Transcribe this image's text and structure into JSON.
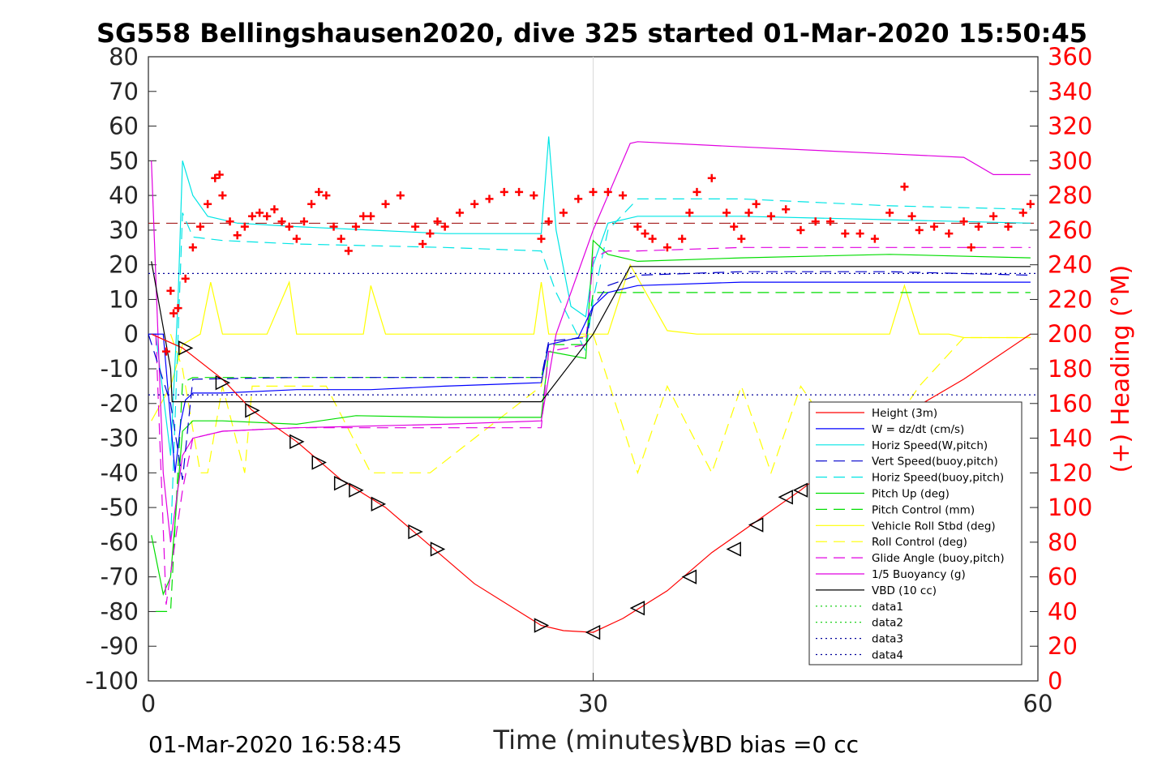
{
  "chart_data": {
    "type": "line",
    "title": "SG558 Bellingshausen2020, dive 325 started 01-Mar-2020 15:50:45",
    "xlabel": "Time (minutes)",
    "ylabel_right": "(+) Heading (°M)",
    "xlim": [
      0,
      60
    ],
    "ylim_left": [
      -100,
      80
    ],
    "ylim_right": [
      0,
      360
    ],
    "x_ticks": [
      "0",
      "30",
      "60"
    ],
    "y_ticks_left": [
      "80",
      "70",
      "60",
      "50",
      "40",
      "30",
      "20",
      "10",
      "0",
      "-10",
      "-20",
      "-30",
      "-40",
      "-50",
      "-60",
      "-70",
      "-80",
      "-90",
      "-100"
    ],
    "y_ticks_right": [
      "360",
      "340",
      "320",
      "300",
      "280",
      "260",
      "240",
      "220",
      "200",
      "180",
      "160",
      "140",
      "120",
      "100",
      "80",
      "60",
      "40",
      "20",
      "0"
    ],
    "grid": "x only at 30",
    "legend_placement": "lower-right",
    "footer_left": "01-Mar-2020 16:58:45",
    "footer_right": "VBD bias =0 cc",
    "series": [
      {
        "name": "Height (3m)",
        "color": "#ff0000",
        "style": "solid",
        "x": [
          0.2,
          2.3,
          5.0,
          7.0,
          10.0,
          13.0,
          16.0,
          19.0,
          22.0,
          26.5,
          28.0,
          30.0,
          32.0,
          35.0,
          38.0,
          41.0,
          44.0,
          47.0,
          51.0,
          55.0,
          59.5
        ],
        "y": [
          0,
          -4,
          -13,
          -22,
          -31,
          -42,
          -50,
          -61,
          -72,
          -84,
          -85.5,
          -86,
          -82,
          -74,
          -63,
          -54,
          -45,
          -35,
          -23,
          -13,
          0
        ]
      },
      {
        "name": "W = dz/dt (cm/s)",
        "color": "#0000ff",
        "style": "solid",
        "x": [
          0,
          1,
          1.8,
          2.2,
          2.5,
          3,
          5,
          10,
          15,
          20,
          26.5,
          27,
          29,
          30,
          31,
          33,
          40,
          50,
          59.5
        ],
        "y": [
          0,
          0,
          -40,
          -25,
          -19,
          -17,
          -17,
          -16,
          -16,
          -15,
          -14,
          -3,
          -1,
          8,
          12,
          14,
          15,
          15,
          15
        ]
      },
      {
        "name": "Horiz Speed(W,pitch)",
        "color": "#00e5e5",
        "style": "solid",
        "x": [
          0.5,
          1.5,
          2,
          2.3,
          3,
          4,
          6,
          10,
          15,
          20,
          26.5,
          27.0,
          27.5,
          28.5,
          29.5,
          30,
          31,
          33,
          40,
          50,
          59.5
        ],
        "y": [
          0,
          -35,
          10,
          50,
          40,
          34,
          32,
          31,
          30,
          29,
          29,
          57,
          30,
          8,
          5,
          20,
          32,
          34,
          34,
          33,
          32
        ]
      },
      {
        "name": "Vert Speed(buoy,pitch)",
        "color": "#0000cc",
        "style": "dash",
        "x": [
          0,
          1.5,
          2.3,
          3,
          10,
          20,
          26.5,
          27,
          29.5,
          30,
          31,
          33,
          40,
          50,
          59.5
        ],
        "y": [
          0,
          -20,
          -42,
          -13,
          -12.5,
          -12.5,
          -12.5,
          -2,
          -1,
          8,
          14,
          17,
          18,
          18,
          17
        ]
      },
      {
        "name": "Horiz Speed(buoy,pitch)",
        "color": "#00e5e5",
        "style": "dash",
        "x": [
          1.5,
          2.3,
          3,
          5,
          10,
          20,
          26.5,
          27.5,
          29.5,
          30,
          31,
          33,
          40,
          50,
          59.5
        ],
        "y": [
          -60,
          35,
          28,
          27,
          26,
          25,
          24,
          12,
          -5,
          10,
          30,
          39,
          39,
          37,
          36
        ]
      },
      {
        "name": "Pitch Up (deg)",
        "color": "#00dd00",
        "style": "solid",
        "x": [
          0.2,
          1,
          1.5,
          2.3,
          3,
          5,
          10,
          14,
          20,
          26.5,
          27,
          29.5,
          30,
          31,
          33,
          40,
          50,
          59.5
        ],
        "y": [
          -58,
          -75,
          -70,
          -28,
          -25,
          -25,
          -26,
          -23.5,
          -24,
          -24,
          -5,
          -7,
          27,
          23,
          21,
          22,
          23,
          22
        ]
      },
      {
        "name": "Pitch Control (mm)",
        "color": "#00dd00",
        "style": "dash",
        "x": [
          0.5,
          1.5,
          2.3,
          3,
          26.5,
          27,
          29.5,
          30,
          31,
          33,
          40,
          50,
          59.5
        ],
        "y": [
          -80,
          -80,
          -14,
          -12.5,
          -12.5,
          -3,
          -3,
          12,
          12,
          12,
          12,
          12,
          12
        ]
      },
      {
        "name": "Vehicle Roll Stbd (deg)",
        "color": "#ffff00",
        "style": "solid",
        "x": [
          0.2,
          1.5,
          2.3,
          3.5,
          4.2,
          5,
          6,
          8,
          9.5,
          10,
          11,
          12,
          14.5,
          15,
          16,
          18,
          19,
          20,
          22,
          26,
          26.5,
          27,
          28.5,
          29,
          31,
          32.5,
          35,
          37,
          38,
          39,
          40,
          42,
          44,
          46,
          48,
          50,
          51,
          52,
          54,
          55,
          57,
          59.5
        ],
        "y": [
          -25,
          -15,
          -3,
          0,
          15,
          0,
          0,
          0,
          15,
          0,
          0,
          0,
          0,
          14,
          0,
          0,
          0,
          0,
          0,
          0,
          15,
          0,
          0,
          0,
          0,
          20,
          1,
          0,
          0,
          0,
          0,
          0,
          0,
          0,
          0,
          0,
          14,
          0,
          0,
          -1,
          -1,
          -1
        ]
      },
      {
        "name": "Roll Control (deg)",
        "color": "#ffff00",
        "style": "dash",
        "x": [
          1.5,
          2.3,
          3.5,
          4.0,
          5,
          6.5,
          7,
          10,
          12,
          15,
          19,
          26.5,
          27,
          30,
          33,
          35,
          38,
          40,
          42,
          44,
          48,
          52,
          55,
          57,
          59.5
        ],
        "y": [
          0,
          -10,
          -40,
          -40,
          -15,
          -40,
          -15,
          -15,
          -15,
          -40,
          -40,
          -15,
          -3,
          0,
          -40,
          -15,
          -40,
          -15,
          -40,
          -15,
          -40,
          -15,
          -1,
          -1,
          -1
        ]
      },
      {
        "name": "Glide Angle (buoy,pitch)",
        "color": "#e000e0",
        "style": "dash",
        "x": [
          0.5,
          1.2,
          2.3,
          3,
          5,
          10,
          20,
          26.5,
          27,
          29.5,
          30,
          31,
          33,
          40,
          50,
          59.5
        ],
        "y": [
          0,
          -78,
          -45,
          -30,
          -28,
          -27,
          -27,
          -27,
          -5,
          -3,
          22,
          24,
          24,
          25,
          25,
          25
        ]
      },
      {
        "name": "1/5 Buoyancy (g)",
        "color": "#e000e0",
        "style": "solid",
        "x": [
          0.2,
          1,
          1.5,
          2.3,
          3,
          5,
          10,
          20,
          26.5,
          27.5,
          30,
          32.5,
          33,
          40,
          50,
          55,
          57,
          59.5
        ],
        "y": [
          50,
          -40,
          -60,
          -35,
          -30,
          -28,
          -27,
          -26,
          -25,
          0,
          30,
          55,
          55.5,
          54,
          52,
          51,
          46,
          46
        ]
      },
      {
        "name": "VBD (10 cc)",
        "color": "#000000",
        "style": "solid",
        "x": [
          0.2,
          1.5,
          1.6,
          26.5,
          30,
          32.5,
          59.5
        ],
        "y": [
          21,
          -10,
          -19.5,
          -19.5,
          0,
          19.5,
          19.5
        ]
      },
      {
        "name": "data1",
        "color": "#00cc00",
        "style": "dot",
        "x": [],
        "y": []
      },
      {
        "name": "data2",
        "color": "#00cc00",
        "style": "dot",
        "x": [],
        "y": []
      },
      {
        "name": "data3",
        "color": "#000099",
        "style": "dot",
        "x": [
          0,
          60
        ],
        "y": [
          -17.5,
          -17.5
        ]
      },
      {
        "name": "data4",
        "color": "#000099",
        "style": "dot",
        "x": [
          0,
          60
        ],
        "y": [
          17.5,
          17.5
        ]
      }
    ],
    "reference_line": {
      "color": "#990000",
      "style": "dash",
      "y": 32
    },
    "heading_points": {
      "color": "#ff0000",
      "axis": "right",
      "x": [
        1.2,
        1.5,
        1.7,
        2.0,
        2.5,
        3.0,
        3.5,
        4.0,
        4.5,
        4.8,
        5.0,
        5.5,
        6.0,
        6.5,
        7.0,
        7.5,
        8.0,
        8.5,
        9.0,
        9.5,
        10.0,
        10.5,
        11.0,
        11.5,
        12.0,
        12.5,
        13.0,
        13.5,
        14.0,
        14.5,
        15.0,
        16.0,
        17.0,
        18.0,
        18.5,
        19.0,
        19.5,
        20.0,
        21.0,
        22.0,
        23.0,
        24.0,
        25.0,
        26.0,
        26.5,
        27.0,
        28.0,
        29.0,
        30.0,
        31.0,
        32.0,
        33.0,
        33.5,
        34.0,
        35.0,
        36.0,
        36.5,
        37.0,
        38.0,
        39.0,
        39.5,
        40.0,
        40.5,
        41.0,
        42.0,
        43.0,
        44.0,
        45.0,
        46.0,
        47.0,
        48.0,
        49.0,
        50.0,
        51.0,
        51.5,
        52.0,
        53.0,
        54.0,
        55.0,
        55.5,
        56.0,
        57.0,
        58.0,
        59.0,
        59.5
      ],
      "y": [
        190,
        225,
        212,
        215,
        232,
        250,
        262,
        275,
        290,
        292,
        280,
        265,
        257,
        262,
        268,
        270,
        268,
        272,
        265,
        262,
        255,
        265,
        275,
        282,
        280,
        262,
        255,
        248,
        262,
        268,
        268,
        275,
        280,
        262,
        252,
        258,
        265,
        262,
        270,
        275,
        278,
        282,
        282,
        280,
        255,
        265,
        270,
        278,
        282,
        282,
        280,
        262,
        258,
        255,
        250,
        255,
        270,
        282,
        290,
        270,
        262,
        255,
        270,
        275,
        268,
        272,
        260,
        265,
        265,
        258,
        258,
        255,
        270,
        285,
        268,
        260,
        262,
        258,
        265,
        250,
        262,
        268,
        262,
        270,
        275
      ]
    },
    "depth_markers": {
      "color": "#000000",
      "x": [
        2.5,
        5.0,
        7.0,
        10.0,
        11.5,
        13.0,
        14.0,
        15.5,
        18.0,
        19.5,
        26.5,
        30.0,
        33.0,
        36.5,
        39.5,
        41.0,
        43.0,
        44.0
      ],
      "y": [
        -4,
        -14,
        -22,
        -31,
        -37,
        -43,
        -45,
        -49,
        -57,
        -62,
        -84,
        -86,
        -79,
        -70,
        -62,
        -55,
        -47,
        -45
      ]
    }
  }
}
